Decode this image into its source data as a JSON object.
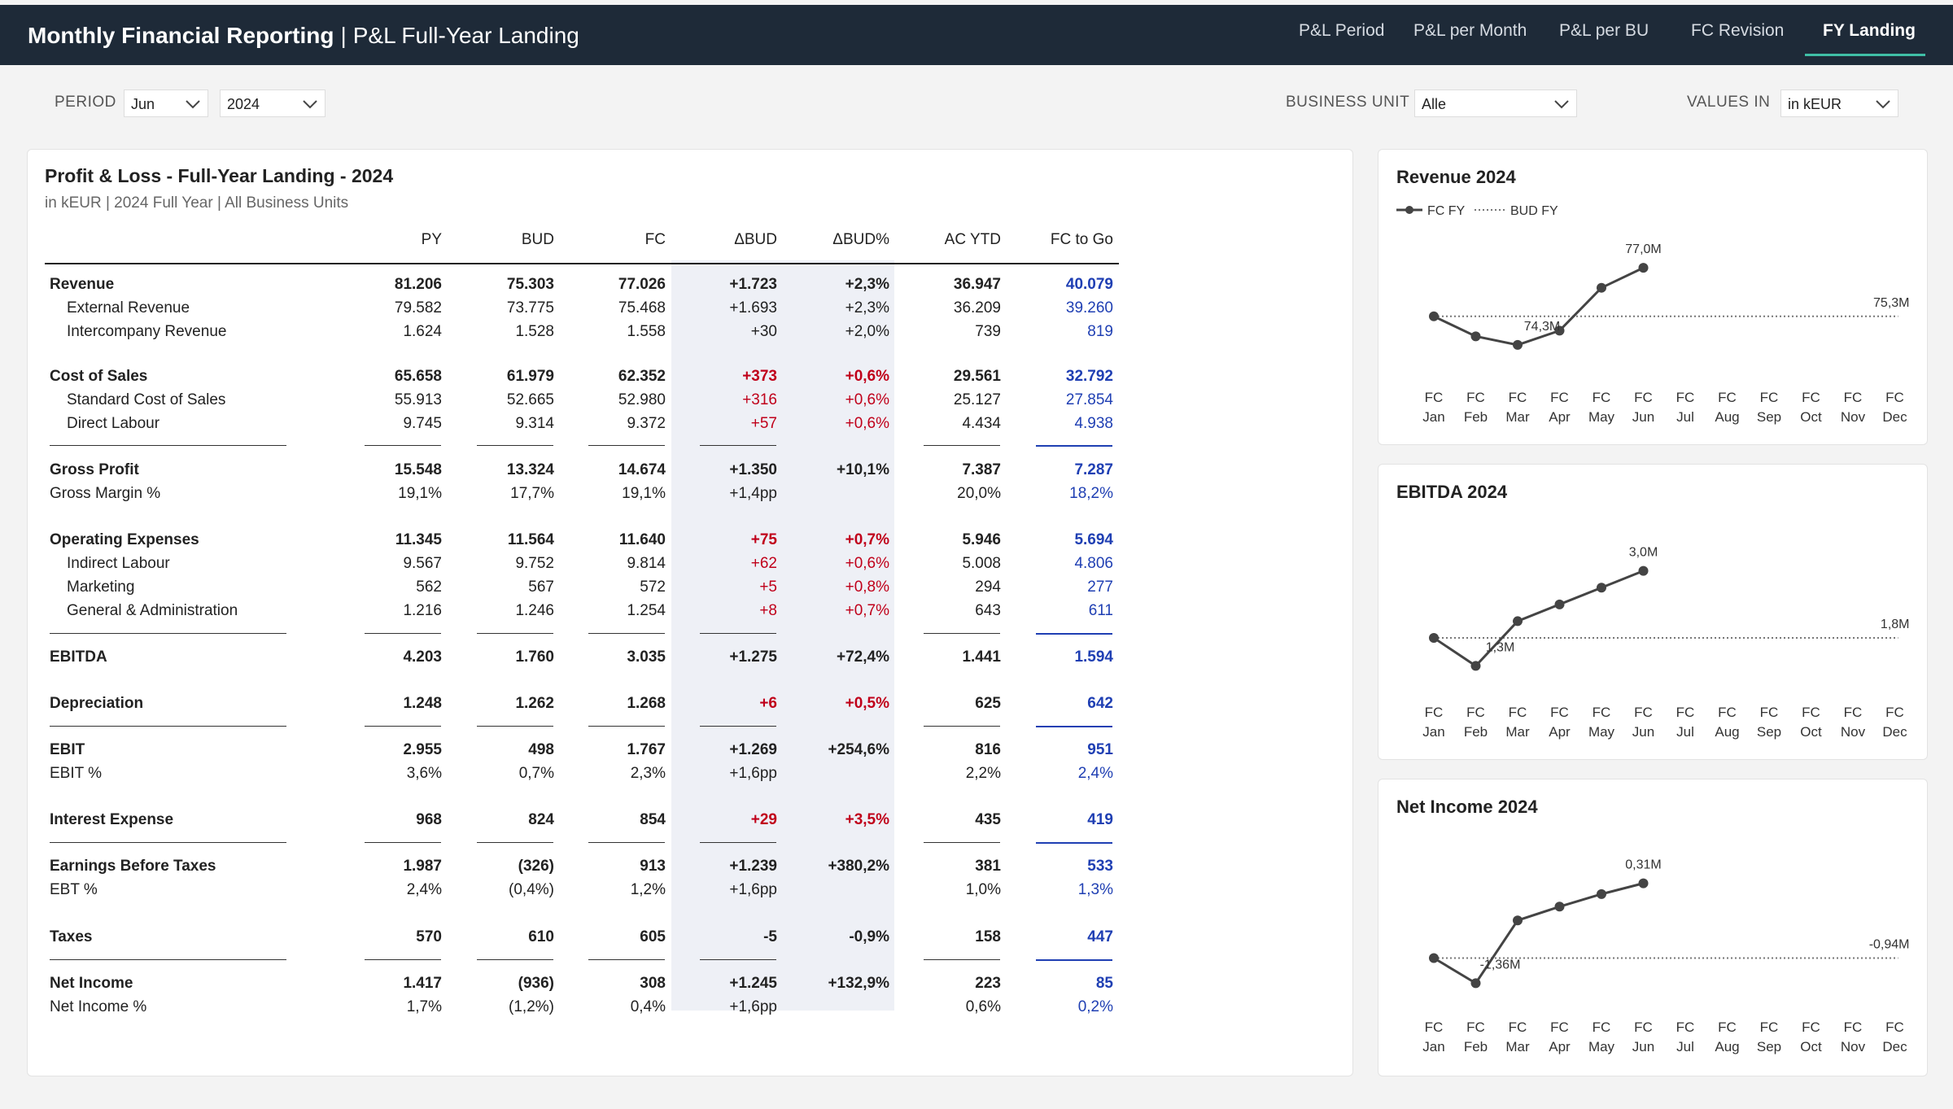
{
  "header": {
    "app_name": "Monthly Financial Reporting",
    "separator": "|",
    "page_name": "P&L Full-Year Landing",
    "tabs": [
      {
        "label": "P&L Period",
        "active": false
      },
      {
        "label": "P&L per Month",
        "active": false
      },
      {
        "label": "P&L per BU",
        "active": false
      },
      {
        "label": "FC Revision",
        "active": false
      },
      {
        "label": "FY Landing",
        "active": true
      }
    ]
  },
  "filters": {
    "period_label": "PERIOD",
    "month_value": "Jun",
    "year_value": "2024",
    "bu_label": "BUSINESS UNIT",
    "bu_value": "Alle",
    "values_label": "VALUES IN",
    "values_value": "in kEUR"
  },
  "pl": {
    "title": "Profit & Loss - Full-Year Landing - 2024",
    "subtitle": "in kEUR | 2024 Full Year | All Business Units",
    "columns": [
      "PY",
      "BUD",
      "FC",
      "ΔBUD",
      "ΔBUD%",
      "AC YTD",
      "FC to Go"
    ],
    "rows": [
      {
        "label": "Revenue",
        "bold": true,
        "indent": false,
        "v": [
          "81.206",
          "75.303",
          "77.026",
          "+1.723",
          "+2,3%",
          "36.947",
          "40.079"
        ],
        "red": false
      },
      {
        "label": "External Revenue",
        "bold": false,
        "indent": true,
        "v": [
          "79.582",
          "73.775",
          "75.468",
          "+1.693",
          "+2,3%",
          "36.209",
          "39.260"
        ],
        "red": false
      },
      {
        "label": "Intercompany Revenue",
        "bold": false,
        "indent": true,
        "v": [
          "1.624",
          "1.528",
          "1.558",
          "+30",
          "+2,0%",
          "739",
          "819"
        ],
        "red": false
      },
      {
        "label": "Cost of Sales",
        "bold": true,
        "indent": false,
        "v": [
          "65.658",
          "61.979",
          "62.352",
          "+373",
          "+0,6%",
          "29.561",
          "32.792"
        ],
        "red": true
      },
      {
        "label": "Standard Cost of Sales",
        "bold": false,
        "indent": true,
        "v": [
          "55.913",
          "52.665",
          "52.980",
          "+316",
          "+0,6%",
          "25.127",
          "27.854"
        ],
        "red": true
      },
      {
        "label": "Direct Labour",
        "bold": false,
        "indent": true,
        "v": [
          "9.745",
          "9.314",
          "9.372",
          "+57",
          "+0,6%",
          "4.434",
          "4.938"
        ],
        "red": true
      },
      {
        "label": "Gross Profit",
        "bold": true,
        "indent": false,
        "v": [
          "15.548",
          "13.324",
          "14.674",
          "+1.350",
          "+10,1%",
          "7.387",
          "7.287"
        ],
        "red": false
      },
      {
        "label": "Gross Margin %",
        "bold": false,
        "indent": false,
        "v": [
          "19,1%",
          "17,7%",
          "19,1%",
          "+1,4pp",
          "",
          "20,0%",
          "18,2%"
        ],
        "red": false
      },
      {
        "label": "Operating Expenses",
        "bold": true,
        "indent": false,
        "v": [
          "11.345",
          "11.564",
          "11.640",
          "+75",
          "+0,7%",
          "5.946",
          "5.694"
        ],
        "red": true
      },
      {
        "label": "Indirect Labour",
        "bold": false,
        "indent": true,
        "v": [
          "9.567",
          "9.752",
          "9.814",
          "+62",
          "+0,6%",
          "5.008",
          "4.806"
        ],
        "red": true
      },
      {
        "label": "Marketing",
        "bold": false,
        "indent": true,
        "v": [
          "562",
          "567",
          "572",
          "+5",
          "+0,8%",
          "294",
          "277"
        ],
        "red": true
      },
      {
        "label": "General & Administration",
        "bold": false,
        "indent": true,
        "v": [
          "1.216",
          "1.246",
          "1.254",
          "+8",
          "+0,7%",
          "643",
          "611"
        ],
        "red": true
      },
      {
        "label": "EBITDA",
        "bold": true,
        "indent": false,
        "v": [
          "4.203",
          "1.760",
          "3.035",
          "+1.275",
          "+72,4%",
          "1.441",
          "1.594"
        ],
        "red": false
      },
      {
        "label": "Depreciation",
        "bold": true,
        "indent": false,
        "v": [
          "1.248",
          "1.262",
          "1.268",
          "+6",
          "+0,5%",
          "625",
          "642"
        ],
        "red": true
      },
      {
        "label": "EBIT",
        "bold": true,
        "indent": false,
        "v": [
          "2.955",
          "498",
          "1.767",
          "+1.269",
          "+254,6%",
          "816",
          "951"
        ],
        "red": false
      },
      {
        "label": "EBIT %",
        "bold": false,
        "indent": false,
        "v": [
          "3,6%",
          "0,7%",
          "2,3%",
          "+1,6pp",
          "",
          "2,2%",
          "2,4%"
        ],
        "red": false
      },
      {
        "label": "Interest Expense",
        "bold": true,
        "indent": false,
        "v": [
          "968",
          "824",
          "854",
          "+29",
          "+3,5%",
          "435",
          "419"
        ],
        "red": true
      },
      {
        "label": "Earnings Before Taxes",
        "bold": true,
        "indent": false,
        "v": [
          "1.987",
          "(326)",
          "913",
          "+1.239",
          "+380,2%",
          "381",
          "533"
        ],
        "red": false
      },
      {
        "label": "EBT %",
        "bold": false,
        "indent": false,
        "v": [
          "2,4%",
          "(0,4%)",
          "1,2%",
          "+1,6pp",
          "",
          "1,0%",
          "1,3%"
        ],
        "red": false
      },
      {
        "label": "Taxes",
        "bold": true,
        "indent": false,
        "v": [
          "570",
          "610",
          "605",
          "-5",
          "-0,9%",
          "158",
          "447"
        ],
        "red": false
      },
      {
        "label": "Net Income",
        "bold": true,
        "indent": false,
        "v": [
          "1.417",
          "(936)",
          "308",
          "+1.245",
          "+132,9%",
          "223",
          "85"
        ],
        "red": false
      },
      {
        "label": "Net Income %",
        "bold": false,
        "indent": false,
        "v": [
          "1,7%",
          "(1,2%)",
          "0,4%",
          "+1,6pp",
          "",
          "0,6%",
          "0,2%"
        ],
        "red": false
      }
    ]
  },
  "charts": {
    "legend_fc": "FC FY",
    "legend_bud": "BUD FY",
    "month_prefix": "FC",
    "months": [
      "Jan",
      "Feb",
      "Mar",
      "Apr",
      "May",
      "Jun",
      "Jul",
      "Aug",
      "Sep",
      "Oct",
      "Nov",
      "Dec"
    ]
  },
  "chart_data": [
    {
      "type": "line",
      "title": "Revenue 2024",
      "categories": [
        "FC Jan",
        "FC Feb",
        "FC Mar",
        "FC Apr",
        "FC May",
        "FC Jun",
        "FC Jul",
        "FC Aug",
        "FC Sep",
        "FC Oct",
        "FC Nov",
        "FC Dec"
      ],
      "series": [
        {
          "name": "FC FY",
          "values": [
            75.3,
            74.6,
            74.3,
            74.8,
            76.3,
            77.0,
            null,
            null,
            null,
            null,
            null,
            null
          ]
        },
        {
          "name": "BUD FY",
          "values": [
            75.3,
            75.3,
            75.3,
            75.3,
            75.3,
            75.3,
            75.3,
            75.3,
            75.3,
            75.3,
            75.3,
            75.3
          ]
        }
      ],
      "labels": {
        "max": "77,0M",
        "min": "74,3M",
        "bud": "75,3M"
      },
      "ylim": [
        73.5,
        78.0
      ],
      "legend": "top-left"
    },
    {
      "type": "line",
      "title": "EBITDA 2024",
      "categories": [
        "FC Jan",
        "FC Feb",
        "FC Mar",
        "FC Apr",
        "FC May",
        "FC Jun",
        "FC Jul",
        "FC Aug",
        "FC Sep",
        "FC Oct",
        "FC Nov",
        "FC Dec"
      ],
      "series": [
        {
          "name": "FC FY",
          "values": [
            1.8,
            1.3,
            2.1,
            2.4,
            2.7,
            3.0,
            null,
            null,
            null,
            null,
            null,
            null
          ]
        },
        {
          "name": "BUD FY",
          "values": [
            1.8,
            1.8,
            1.8,
            1.8,
            1.8,
            1.8,
            1.8,
            1.8,
            1.8,
            1.8,
            1.8,
            1.8
          ]
        }
      ],
      "labels": {
        "max": "3,0M",
        "min": "1,3M",
        "bud": "1,8M"
      },
      "ylim": [
        1.0,
        3.3
      ]
    },
    {
      "type": "line",
      "title": "Net Income 2024",
      "categories": [
        "FC Jan",
        "FC Feb",
        "FC Mar",
        "FC Apr",
        "FC May",
        "FC Jun",
        "FC Jul",
        "FC Aug",
        "FC Sep",
        "FC Oct",
        "FC Nov",
        "FC Dec"
      ],
      "series": [
        {
          "name": "FC FY",
          "values": [
            -0.94,
            -1.36,
            -0.31,
            -0.08,
            0.13,
            0.31,
            null,
            null,
            null,
            null,
            null,
            null
          ]
        },
        {
          "name": "BUD FY",
          "values": [
            -0.94,
            -0.94,
            -0.94,
            -0.94,
            -0.94,
            -0.94,
            -0.94,
            -0.94,
            -0.94,
            -0.94,
            -0.94,
            -0.94
          ]
        }
      ],
      "labels": {
        "max": "0,31M",
        "min": "-1,36M",
        "bud": "-0,94M"
      },
      "ylim": [
        -1.6,
        0.55
      ]
    }
  ]
}
